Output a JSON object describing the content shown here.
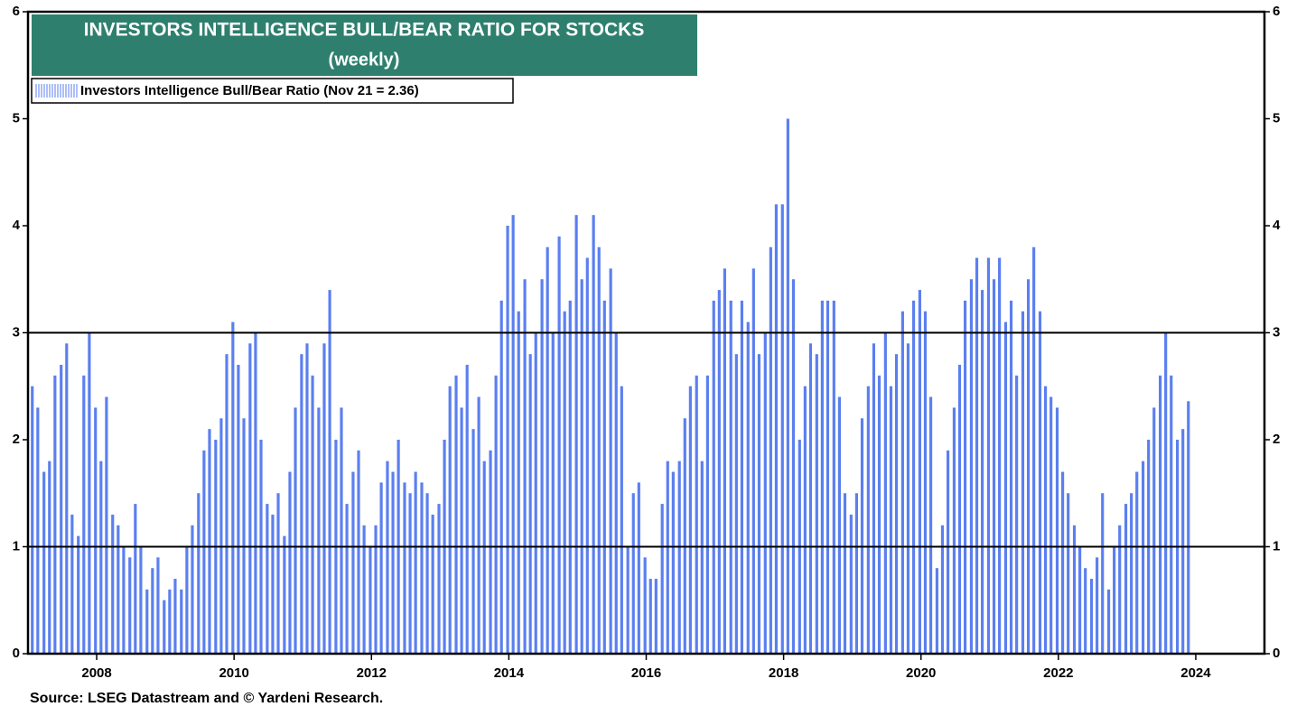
{
  "chart_data": {
    "type": "bar",
    "title": "INVESTORS INTELLIGENCE BULL/BEAR RATIO FOR STOCKS",
    "subtitle": "(weekly)",
    "source": "Source: LSEG Datastream and © Yardeni Research.",
    "series": [
      {
        "name": "Investors Intelligence Bull/Bear Ratio (Nov 21 = 2.36)",
        "color": "#5b7ff0",
        "x": [
          2007,
          2007.08,
          2007.17,
          2007.25,
          2007.33,
          2007.42,
          2007.5,
          2007.58,
          2007.67,
          2007.75,
          2007.83,
          2007.92,
          2008,
          2008.08,
          2008.17,
          2008.25,
          2008.33,
          2008.42,
          2008.5,
          2008.58,
          2008.67,
          2008.75,
          2008.83,
          2008.92,
          2009,
          2009.08,
          2009.17,
          2009.25,
          2009.33,
          2009.42,
          2009.5,
          2009.58,
          2009.67,
          2009.75,
          2009.83,
          2009.92,
          2010,
          2010.08,
          2010.17,
          2010.25,
          2010.33,
          2010.42,
          2010.5,
          2010.58,
          2010.67,
          2010.75,
          2010.83,
          2010.92,
          2011,
          2011.08,
          2011.17,
          2011.25,
          2011.33,
          2011.42,
          2011.5,
          2011.58,
          2011.67,
          2011.75,
          2011.83,
          2011.92,
          2012,
          2012.08,
          2012.17,
          2012.25,
          2012.33,
          2012.42,
          2012.5,
          2012.58,
          2012.67,
          2012.75,
          2012.83,
          2012.92,
          2013,
          2013.08,
          2013.17,
          2013.25,
          2013.33,
          2013.42,
          2013.5,
          2013.58,
          2013.67,
          2013.75,
          2013.83,
          2013.92,
          2014,
          2014.08,
          2014.17,
          2014.25,
          2014.33,
          2014.42,
          2014.5,
          2014.58,
          2014.67,
          2014.75,
          2014.83,
          2014.92,
          2015,
          2015.08,
          2015.17,
          2015.25,
          2015.33,
          2015.42,
          2015.5,
          2015.58,
          2015.67,
          2015.75,
          2015.83,
          2015.92,
          2016,
          2016.08,
          2016.17,
          2016.25,
          2016.33,
          2016.42,
          2016.5,
          2016.58,
          2016.67,
          2016.75,
          2016.83,
          2016.92,
          2017,
          2017.08,
          2017.17,
          2017.25,
          2017.33,
          2017.42,
          2017.5,
          2017.58,
          2017.67,
          2017.75,
          2017.83,
          2017.92,
          2018,
          2018.08,
          2018.17,
          2018.25,
          2018.33,
          2018.42,
          2018.5,
          2018.58,
          2018.67,
          2018.75,
          2018.83,
          2018.92,
          2019,
          2019.08,
          2019.17,
          2019.25,
          2019.33,
          2019.42,
          2019.5,
          2019.58,
          2019.67,
          2019.75,
          2019.83,
          2019.92,
          2020,
          2020.08,
          2020.17,
          2020.25,
          2020.33,
          2020.42,
          2020.5,
          2020.58,
          2020.67,
          2020.75,
          2020.83,
          2020.92,
          2021,
          2021.08,
          2021.17,
          2021.25,
          2021.33,
          2021.42,
          2021.5,
          2021.58,
          2021.67,
          2021.75,
          2021.83,
          2021.92,
          2022,
          2022.08,
          2022.17,
          2022.25,
          2022.33,
          2022.42,
          2022.5,
          2022.58,
          2022.67,
          2022.75,
          2022.83,
          2022.92,
          2023,
          2023.08,
          2023.17,
          2023.25,
          2023.33,
          2023.42,
          2023.5,
          2023.58,
          2023.67,
          2023.75,
          2023.83
        ],
        "values": [
          2.5,
          2.3,
          1.7,
          1.8,
          2.6,
          2.7,
          2.9,
          1.3,
          1.1,
          2.6,
          3.0,
          2.3,
          1.8,
          2.4,
          1.3,
          1.2,
          1.0,
          0.9,
          1.4,
          1.0,
          0.6,
          0.8,
          0.9,
          0.5,
          0.6,
          0.7,
          0.6,
          1.0,
          1.2,
          1.5,
          1.9,
          2.1,
          2.0,
          2.2,
          2.8,
          3.1,
          2.7,
          2.2,
          2.9,
          3.0,
          2.0,
          1.4,
          1.3,
          1.5,
          1.1,
          1.7,
          2.3,
          2.8,
          2.9,
          2.6,
          2.3,
          2.9,
          3.4,
          2.0,
          2.3,
          1.4,
          1.7,
          1.9,
          1.2,
          1.0,
          1.2,
          1.6,
          1.8,
          1.7,
          2.0,
          1.6,
          1.5,
          1.7,
          1.6,
          1.5,
          1.3,
          1.4,
          2.0,
          2.5,
          2.6,
          2.3,
          2.7,
          2.1,
          2.4,
          1.8,
          1.9,
          2.6,
          3.3,
          4.0,
          4.1,
          3.2,
          3.5,
          2.8,
          3.0,
          3.5,
          3.8,
          3.0,
          3.9,
          3.2,
          3.3,
          4.1,
          3.5,
          3.7,
          4.1,
          3.8,
          3.3,
          3.6,
          3.0,
          2.5,
          1.0,
          1.5,
          1.6,
          0.9,
          0.7,
          0.7,
          1.4,
          1.8,
          1.7,
          1.8,
          2.2,
          2.5,
          2.6,
          1.8,
          2.6,
          3.3,
          3.4,
          3.6,
          3.3,
          2.8,
          3.3,
          3.1,
          3.6,
          2.8,
          3.0,
          3.8,
          4.2,
          4.2,
          5.0,
          3.5,
          2.0,
          2.5,
          2.9,
          2.8,
          3.3,
          3.3,
          3.3,
          2.4,
          1.5,
          1.3,
          1.5,
          2.2,
          2.5,
          2.9,
          2.6,
          3.0,
          2.5,
          2.8,
          3.2,
          2.9,
          3.3,
          3.4,
          3.2,
          2.4,
          0.8,
          1.2,
          1.9,
          2.3,
          2.7,
          3.3,
          3.5,
          3.7,
          3.4,
          3.7,
          3.5,
          3.7,
          3.1,
          3.3,
          2.6,
          3.2,
          3.5,
          3.8,
          3.2,
          2.5,
          2.4,
          2.3,
          1.7,
          1.5,
          1.2,
          1.0,
          0.8,
          0.7,
          0.9,
          1.5,
          0.6,
          1.0,
          1.2,
          1.4,
          1.5,
          1.7,
          1.8,
          2.0,
          2.3,
          2.6,
          3.0,
          2.6,
          2.0,
          2.1,
          2.36
        ]
      }
    ],
    "xlim": [
      2007,
      2025
    ],
    "xticks": [
      2008,
      2010,
      2012,
      2014,
      2016,
      2018,
      2020,
      2022,
      2024
    ],
    "ylim": [
      0,
      6
    ],
    "yticks": [
      0,
      1,
      2,
      3,
      4,
      5,
      6
    ],
    "y2lim": [
      0,
      6
    ],
    "y2ticks": [
      0,
      1,
      2,
      3,
      4,
      5,
      6
    ],
    "reference_lines": [
      1,
      3
    ],
    "legend": "top-left"
  }
}
